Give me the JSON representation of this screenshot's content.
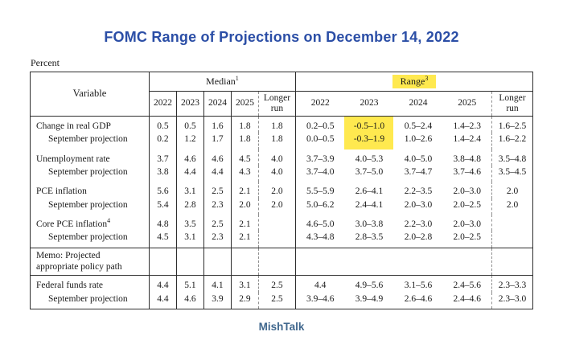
{
  "colors": {
    "title_blue": "#2b4ea6",
    "footer_blue": "#41688e",
    "highlight_yellow": "#ffe94f",
    "border": "#2e2e2e"
  },
  "page": {
    "title": "FOMC Range of Projections on December 14, 2022",
    "unit_label": "Percent",
    "footer": "MishTalk"
  },
  "table": {
    "corner_header": "Variable",
    "group_headers": [
      {
        "label": "Median",
        "sup": "1",
        "highlight": false
      },
      {
        "label": "Range",
        "sup": "3",
        "highlight": true
      }
    ],
    "year_headers": [
      "2022",
      "2023",
      "2024",
      "2025",
      "Longer run"
    ],
    "memo_after": 3,
    "memo_row": {
      "label": "Memo: Projected\nappropriate policy path"
    },
    "sections": [
      {
        "rows": [
          {
            "label": "Change in real GDP",
            "sup": "",
            "indent": false,
            "median": [
              "0.5",
              "0.5",
              "1.6",
              "1.8",
              "1.8"
            ],
            "range": [
              "0.2–0.5",
              "-0.5–1.0",
              "0.5–2.4",
              "1.4–2.3",
              "1.6–2.5"
            ],
            "highlight_range": [
              1
            ]
          },
          {
            "label": "September projection",
            "sup": "",
            "indent": true,
            "median": [
              "0.2",
              "1.2",
              "1.7",
              "1.8",
              "1.8"
            ],
            "range": [
              "0.0–0.5",
              "-0.3–1.9",
              "1.0–2.6",
              "1.4–2.4",
              "1.6–2.2"
            ],
            "highlight_range": [
              1
            ]
          }
        ]
      },
      {
        "rows": [
          {
            "label": "Unemployment rate",
            "sup": "",
            "indent": false,
            "median": [
              "3.7",
              "4.6",
              "4.6",
              "4.5",
              "4.0"
            ],
            "range": [
              "3.7–3.9",
              "4.0–5.3",
              "4.0–5.0",
              "3.8–4.8",
              "3.5–4.8"
            ],
            "highlight_range": []
          },
          {
            "label": "September projection",
            "sup": "",
            "indent": true,
            "median": [
              "3.8",
              "4.4",
              "4.4",
              "4.3",
              "4.0"
            ],
            "range": [
              "3.7–4.0",
              "3.7–5.0",
              "3.7–4.7",
              "3.7–4.6",
              "3.5–4.5"
            ],
            "highlight_range": []
          }
        ]
      },
      {
        "rows": [
          {
            "label": "PCE inflation",
            "sup": "",
            "indent": false,
            "median": [
              "5.6",
              "3.1",
              "2.5",
              "2.1",
              "2.0"
            ],
            "range": [
              "5.5–5.9",
              "2.6–4.1",
              "2.2–3.5",
              "2.0–3.0",
              "2.0"
            ],
            "highlight_range": []
          },
          {
            "label": "September projection",
            "sup": "",
            "indent": true,
            "median": [
              "5.4",
              "2.8",
              "2.3",
              "2.0",
              "2.0"
            ],
            "range": [
              "5.0–6.2",
              "2.4–4.1",
              "2.0–3.0",
              "2.0–2.5",
              "2.0"
            ],
            "highlight_range": []
          }
        ]
      },
      {
        "rows": [
          {
            "label": "Core PCE inflation",
            "sup": "4",
            "indent": false,
            "median": [
              "4.8",
              "3.5",
              "2.5",
              "2.1",
              ""
            ],
            "range": [
              "4.6–5.0",
              "3.0–3.8",
              "2.2–3.0",
              "2.0–3.0",
              ""
            ],
            "highlight_range": []
          },
          {
            "label": "September projection",
            "sup": "",
            "indent": true,
            "median": [
              "4.5",
              "3.1",
              "2.3",
              "2.1",
              ""
            ],
            "range": [
              "4.3–4.8",
              "2.8–3.5",
              "2.0–2.8",
              "2.0–2.5",
              ""
            ],
            "highlight_range": []
          }
        ]
      },
      {
        "rows": [
          {
            "label": "Federal funds rate",
            "sup": "",
            "indent": false,
            "median": [
              "4.4",
              "5.1",
              "4.1",
              "3.1",
              "2.5"
            ],
            "range": [
              "4.4",
              "4.9–5.6",
              "3.1–5.6",
              "2.4–5.6",
              "2.3–3.3"
            ],
            "highlight_range": []
          },
          {
            "label": "September projection",
            "sup": "",
            "indent": true,
            "median": [
              "4.4",
              "4.6",
              "3.9",
              "2.9",
              "2.5"
            ],
            "range": [
              "3.9–4.6",
              "3.9–4.9",
              "2.6–4.6",
              "2.4–4.6",
              "2.3–3.0"
            ],
            "highlight_range": []
          }
        ]
      }
    ]
  }
}
